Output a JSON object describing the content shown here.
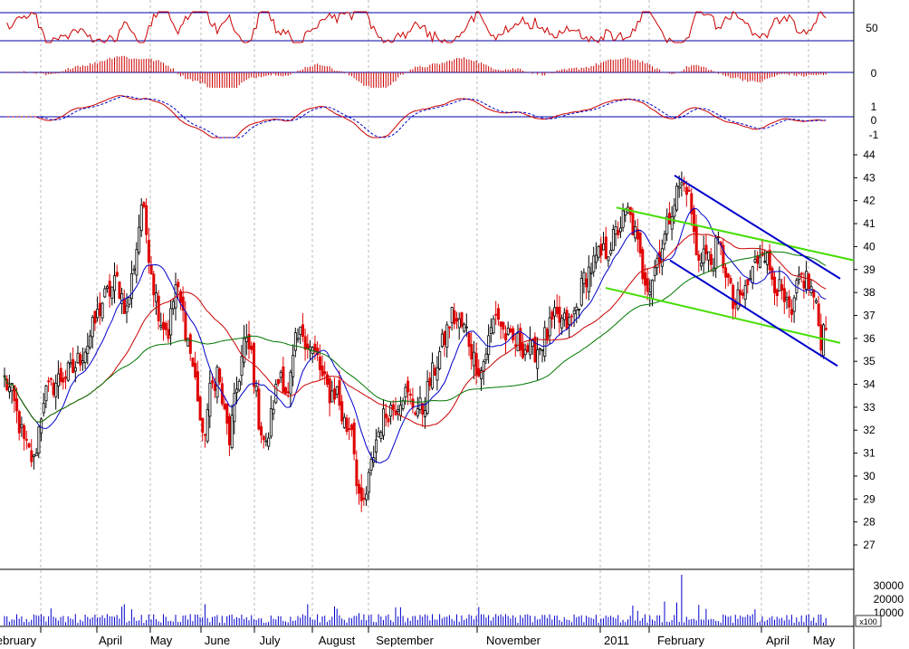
{
  "chart_data": {
    "type": "candlestick",
    "colors": {
      "up_candle": "#000000",
      "down_candle": "#e00000",
      "ma_short": "#0000cc",
      "ma_mid": "#cc0000",
      "ma_long": "#007700",
      "channel_blue": "#0000cc",
      "channel_green": "#44dd00",
      "panel_line": "#0000aa",
      "volume": "#0000cc",
      "indicator": "#cc0000"
    },
    "x_axis": {
      "labels": [
        "February",
        "April",
        "May",
        "June",
        "July",
        "August",
        "September",
        "November",
        "2011",
        "February",
        "April",
        "May"
      ]
    },
    "price_axis": {
      "ylim": [
        26.2,
        44.4
      ],
      "ticks": [
        "27",
        "28",
        "29",
        "30",
        "31",
        "32",
        "33",
        "34",
        "35",
        "36",
        "37",
        "38",
        "39",
        "40",
        "41",
        "42",
        "43",
        "44"
      ]
    },
    "rsi_panel": {
      "ticks": [
        "50"
      ]
    },
    "histogram_panel": {
      "ticks": [
        "0"
      ]
    },
    "macd_panel": {
      "ticks": [
        "1",
        "0",
        "-1"
      ]
    },
    "volume_panel": {
      "ticks": [
        "30000",
        "20000",
        "10000"
      ],
      "multiplier_label": "x100"
    },
    "closes_key_points": [
      {
        "i": 0,
        "v": 34.2
      },
      {
        "i": 3,
        "v": 33.5
      },
      {
        "i": 8,
        "v": 31.4
      },
      {
        "i": 12,
        "v": 30.6
      },
      {
        "i": 16,
        "v": 33.5
      },
      {
        "i": 22,
        "v": 34.2
      },
      {
        "i": 28,
        "v": 34.6
      },
      {
        "i": 34,
        "v": 35.8
      },
      {
        "i": 40,
        "v": 37.6
      },
      {
        "i": 46,
        "v": 38.5
      },
      {
        "i": 50,
        "v": 37.2
      },
      {
        "i": 54,
        "v": 40.0
      },
      {
        "i": 56,
        "v": 41.9
      },
      {
        "i": 58,
        "v": 40.6
      },
      {
        "i": 61,
        "v": 38.3
      },
      {
        "i": 64,
        "v": 36.8
      },
      {
        "i": 67,
        "v": 36.3
      },
      {
        "i": 70,
        "v": 38.3
      },
      {
        "i": 73,
        "v": 37.0
      },
      {
        "i": 76,
        "v": 35.4
      },
      {
        "i": 79,
        "v": 33.5
      },
      {
        "i": 81,
        "v": 31.4
      },
      {
        "i": 84,
        "v": 33.6
      },
      {
        "i": 87,
        "v": 34.6
      },
      {
        "i": 90,
        "v": 32.6
      },
      {
        "i": 92,
        "v": 31.6
      },
      {
        "i": 95,
        "v": 33.8
      },
      {
        "i": 98,
        "v": 35.8
      },
      {
        "i": 101,
        "v": 35.3
      },
      {
        "i": 104,
        "v": 32.5
      },
      {
        "i": 107,
        "v": 31.2
      },
      {
        "i": 110,
        "v": 33.2
      },
      {
        "i": 113,
        "v": 34.6
      },
      {
        "i": 116,
        "v": 33.4
      },
      {
        "i": 119,
        "v": 35.7
      },
      {
        "i": 122,
        "v": 36.3
      },
      {
        "i": 125,
        "v": 35.6
      },
      {
        "i": 128,
        "v": 35.1
      },
      {
        "i": 130,
        "v": 34.2
      },
      {
        "i": 133,
        "v": 33.6
      },
      {
        "i": 136,
        "v": 33.7
      },
      {
        "i": 138,
        "v": 32.6
      },
      {
        "i": 140,
        "v": 32.1
      },
      {
        "i": 142,
        "v": 32.3
      },
      {
        "i": 144,
        "v": 30.0
      },
      {
        "i": 146,
        "v": 28.4
      },
      {
        "i": 148,
        "v": 29.2
      },
      {
        "i": 150,
        "v": 30.4
      },
      {
        "i": 152,
        "v": 31.6
      },
      {
        "i": 154,
        "v": 32.3
      },
      {
        "i": 157,
        "v": 32.9
      },
      {
        "i": 160,
        "v": 33.1
      },
      {
        "i": 163,
        "v": 33.7
      },
      {
        "i": 166,
        "v": 33.3
      },
      {
        "i": 168,
        "v": 33.0
      },
      {
        "i": 171,
        "v": 32.9
      },
      {
        "i": 174,
        "v": 34.1
      },
      {
        "i": 177,
        "v": 35.0
      },
      {
        "i": 180,
        "v": 36.0
      },
      {
        "i": 183,
        "v": 37.0
      },
      {
        "i": 186,
        "v": 36.6
      },
      {
        "i": 189,
        "v": 36.3
      },
      {
        "i": 192,
        "v": 35.1
      },
      {
        "i": 195,
        "v": 34.6
      },
      {
        "i": 198,
        "v": 35.9
      },
      {
        "i": 201,
        "v": 37.2
      },
      {
        "i": 204,
        "v": 36.3
      },
      {
        "i": 207,
        "v": 35.8
      },
      {
        "i": 210,
        "v": 35.8
      },
      {
        "i": 213,
        "v": 35.6
      },
      {
        "i": 216,
        "v": 35.4
      },
      {
        "i": 219,
        "v": 35.7
      },
      {
        "i": 222,
        "v": 36.2
      },
      {
        "i": 225,
        "v": 36.8
      },
      {
        "i": 228,
        "v": 36.7
      },
      {
        "i": 231,
        "v": 36.6
      },
      {
        "i": 234,
        "v": 37.3
      },
      {
        "i": 237,
        "v": 38.6
      },
      {
        "i": 240,
        "v": 39.1
      },
      {
        "i": 243,
        "v": 39.5
      },
      {
        "i": 246,
        "v": 39.8
      },
      {
        "i": 249,
        "v": 40.3
      },
      {
        "i": 252,
        "v": 41.0
      },
      {
        "i": 255,
        "v": 41.5
      },
      {
        "i": 258,
        "v": 40.5
      },
      {
        "i": 261,
        "v": 38.9
      },
      {
        "i": 264,
        "v": 38.3
      },
      {
        "i": 267,
        "v": 39.5
      },
      {
        "i": 270,
        "v": 40.4
      },
      {
        "i": 273,
        "v": 41.8
      },
      {
        "i": 276,
        "v": 42.6
      },
      {
        "i": 279,
        "v": 42.7
      },
      {
        "i": 281,
        "v": 41.5
      },
      {
        "i": 283,
        "v": 39.5
      },
      {
        "i": 286,
        "v": 39.8
      },
      {
        "i": 289,
        "v": 39.3
      },
      {
        "i": 292,
        "v": 40.1
      },
      {
        "i": 295,
        "v": 39.0
      },
      {
        "i": 298,
        "v": 37.4
      },
      {
        "i": 301,
        "v": 37.7
      },
      {
        "i": 304,
        "v": 38.3
      },
      {
        "i": 307,
        "v": 39.2
      },
      {
        "i": 310,
        "v": 40.1
      },
      {
        "i": 313,
        "v": 39.0
      },
      {
        "i": 316,
        "v": 38.3
      },
      {
        "i": 319,
        "v": 37.5
      },
      {
        "i": 322,
        "v": 36.8
      },
      {
        "i": 325,
        "v": 38.6
      },
      {
        "i": 328,
        "v": 38.6
      },
      {
        "i": 331,
        "v": 37.8
      },
      {
        "i": 334,
        "v": 36.0
      },
      {
        "i": 336,
        "v": 36.8
      }
    ]
  }
}
